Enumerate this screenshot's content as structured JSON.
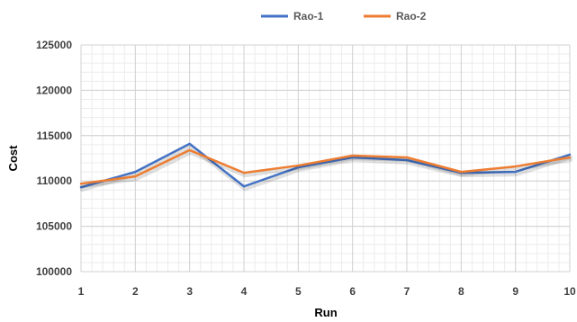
{
  "chart_data": {
    "type": "line",
    "title": "",
    "xlabel": "Run",
    "ylabel": "Cost",
    "x": [
      1,
      2,
      3,
      4,
      5,
      6,
      7,
      8,
      9,
      10
    ],
    "x_tick_labels": [
      "1",
      "2",
      "3",
      "4",
      "5",
      "6",
      "7",
      "8",
      "9",
      "10"
    ],
    "ylim": [
      100000,
      125000
    ],
    "y_ticks": [
      100000,
      105000,
      110000,
      115000,
      120000,
      125000
    ],
    "y_tick_labels": [
      "100000",
      "105000",
      "110000",
      "115000",
      "120000",
      "125000"
    ],
    "grid": "major and minor",
    "legend_position": "top",
    "series": [
      {
        "name": "Rao-1",
        "color": "#4472C4",
        "values": [
          109300,
          111000,
          114100,
          109400,
          111500,
          112600,
          112300,
          110900,
          111000,
          112900
        ]
      },
      {
        "name": "Rao-2",
        "color": "#ED7D31",
        "values": [
          109700,
          110500,
          113400,
          110900,
          111700,
          112800,
          112600,
          111000,
          111600,
          112600
        ]
      }
    ]
  }
}
